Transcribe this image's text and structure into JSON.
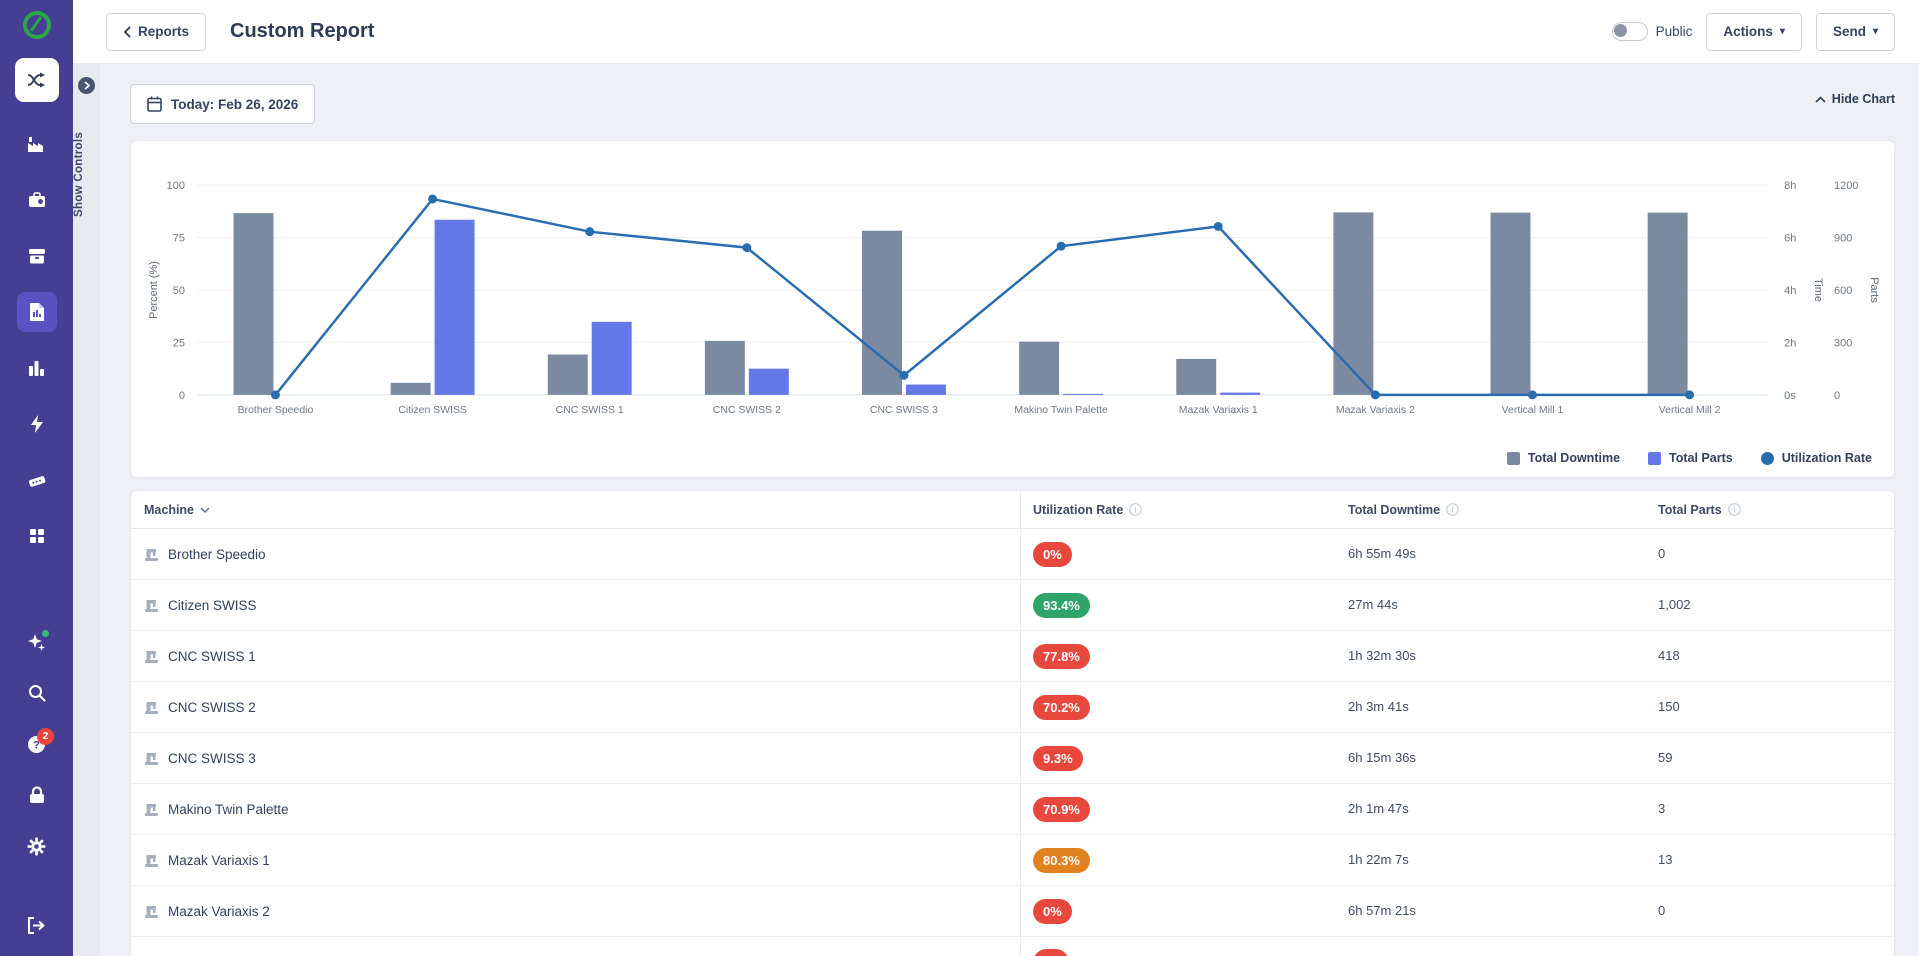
{
  "header": {
    "back_label": "Reports",
    "title": "Custom Report",
    "public_label": "Public",
    "actions_label": "Actions",
    "send_label": "Send"
  },
  "controls": {
    "date_label": "Today: Feb 26, 2026",
    "hide_chart_label": "Hide Chart",
    "show_controls_label": "Show Controls"
  },
  "sidebar": {
    "help_badge": "2",
    "top_icons": [
      "shuffle",
      "factory",
      "toolbox",
      "package",
      "report-chart",
      "bar-chart",
      "lightning",
      "keyboard-device",
      "grid"
    ],
    "active_icon": "report-chart",
    "bottom_icons": [
      "sparkles",
      "search",
      "help",
      "lock",
      "gear",
      "logout"
    ]
  },
  "colors": {
    "sidebar": "#453e92",
    "sidebar_active": "#5a52c4",
    "badge_red": "#e8473e",
    "badge_green": "#2fa56b",
    "badge_orange": "#e2811f",
    "bar_downtime": "#7b89a1",
    "bar_parts": "#6478e8",
    "line_utilization": "#2a6cb2"
  },
  "chart_data": {
    "type": "combo",
    "categories": [
      "Brother Speedio",
      "Citizen SWISS",
      "CNC SWISS 1",
      "CNC SWISS 2",
      "CNC SWISS 3",
      "Makino Twin Palette",
      "Mazak Variaxis 1",
      "Mazak Variaxis 2",
      "Vertical Mill 1",
      "Vertical Mill 2"
    ],
    "series": [
      {
        "name": "Total Downtime",
        "type": "bar",
        "axis": "time",
        "color": "#7b89a1",
        "values": [
          6.93,
          0.46,
          1.54,
          2.06,
          6.26,
          2.03,
          1.37,
          6.96,
          6.95,
          6.95
        ],
        "unit": "hours"
      },
      {
        "name": "Total Parts",
        "type": "bar",
        "axis": "parts",
        "color": "#6478e8",
        "values": [
          0,
          1002,
          418,
          150,
          59,
          3,
          13,
          0,
          0,
          0
        ],
        "unit": "parts"
      },
      {
        "name": "Utilization Rate",
        "type": "line",
        "axis": "percent",
        "color": "#2a6cb2",
        "values": [
          0,
          93.4,
          77.8,
          70.2,
          9.3,
          70.9,
          80.3,
          0,
          0,
          0
        ],
        "unit": "%"
      }
    ],
    "axes": {
      "percent": {
        "label": "Percent (%)",
        "ticks": [
          "100",
          "75",
          "50",
          "25",
          "0"
        ],
        "min": 0,
        "max": 100
      },
      "time": {
        "label": "Time",
        "ticks": [
          "8h",
          "6h",
          "4h",
          "2h",
          "0s"
        ],
        "min": 0,
        "max": 8
      },
      "parts": {
        "label": "Parts",
        "ticks": [
          "1200",
          "900",
          "600",
          "300",
          "0"
        ],
        "min": 0,
        "max": 1200
      }
    },
    "grid": true,
    "legend_position": "bottom-right",
    "legend": [
      "Total Downtime",
      "Total Parts",
      "Utilization Rate"
    ]
  },
  "table": {
    "columns": [
      {
        "label": "Machine",
        "sortable": true
      },
      {
        "label": "Utilization Rate",
        "info": true
      },
      {
        "label": "Total Downtime",
        "info": true
      },
      {
        "label": "Total Parts",
        "info": true
      }
    ],
    "rows": [
      {
        "machine": "Brother Speedio",
        "utilization": "0%",
        "status": "red",
        "downtime": "6h 55m 49s",
        "parts": "0"
      },
      {
        "machine": "Citizen SWISS",
        "utilization": "93.4%",
        "status": "green",
        "downtime": "27m 44s",
        "parts": "1,002"
      },
      {
        "machine": "CNC SWISS 1",
        "utilization": "77.8%",
        "status": "red",
        "downtime": "1h 32m 30s",
        "parts": "418"
      },
      {
        "machine": "CNC SWISS 2",
        "utilization": "70.2%",
        "status": "red",
        "downtime": "2h 3m 41s",
        "parts": "150"
      },
      {
        "machine": "CNC SWISS 3",
        "utilization": "9.3%",
        "status": "red",
        "downtime": "6h 15m 36s",
        "parts": "59"
      },
      {
        "machine": "Makino Twin Palette",
        "utilization": "70.9%",
        "status": "red",
        "downtime": "2h 1m 47s",
        "parts": "3"
      },
      {
        "machine": "Mazak Variaxis 1",
        "utilization": "80.3%",
        "status": "orange",
        "downtime": "1h 22m 7s",
        "parts": "13"
      },
      {
        "machine": "Mazak Variaxis 2",
        "utilization": "0%",
        "status": "red",
        "downtime": "6h 57m 21s",
        "parts": "0"
      }
    ],
    "partial_row": {
      "status": "red"
    }
  }
}
